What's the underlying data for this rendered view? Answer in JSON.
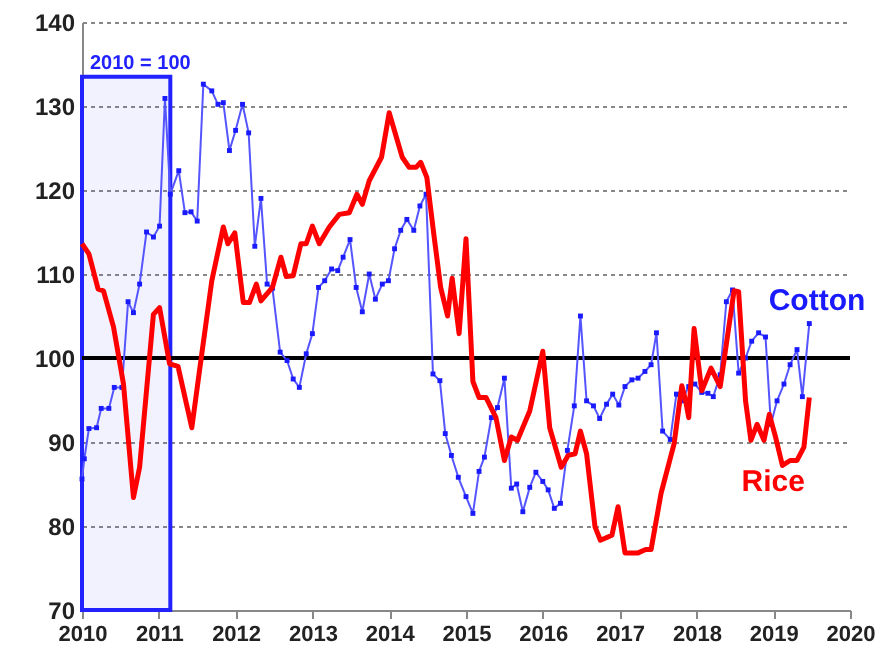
{
  "chart_data": {
    "type": "line",
    "xlim": [
      2010,
      2020
    ],
    "xticks": [
      2010,
      2011,
      2012,
      2013,
      2014,
      2015,
      2016,
      2017,
      2018,
      2019,
      2020
    ],
    "ylim": [
      70,
      140
    ],
    "yticks": [
      70,
      80,
      90,
      100,
      110,
      120,
      130,
      140
    ],
    "grid": "y",
    "ref_lines": [
      {
        "axis": "y",
        "value": 100,
        "color": "#000000"
      }
    ],
    "bands": [
      {
        "axis": "x",
        "from": 2010,
        "to": 2011.15,
        "label": "2010 = 100",
        "color": "#2222ff"
      }
    ],
    "series": [
      {
        "name": "Cotton",
        "color": "#5555ff",
        "marker": "square",
        "x": [
          2010.0,
          2010.03,
          2010.09,
          2010.19,
          2010.25,
          2010.35,
          2010.42,
          2010.52,
          2010.6,
          2010.67,
          2010.75,
          2010.84,
          2010.93,
          2011.01,
          2011.08,
          2011.15,
          2011.26,
          2011.34,
          2011.42,
          2011.5,
          2011.58,
          2011.69,
          2011.77,
          2011.84,
          2011.92,
          2012.0,
          2012.09,
          2012.17,
          2012.25,
          2012.33,
          2012.41,
          2012.48,
          2012.58,
          2012.67,
          2012.75,
          2012.83,
          2012.92,
          2013.0,
          2013.08,
          2013.16,
          2013.25,
          2013.33,
          2013.4,
          2013.49,
          2013.57,
          2013.65,
          2013.74,
          2013.82,
          2013.91,
          2013.99,
          2014.07,
          2014.15,
          2014.23,
          2014.32,
          2014.4,
          2014.48,
          2014.57,
          2014.66,
          2014.73,
          2014.81,
          2014.9,
          2015.0,
          2015.09,
          2015.17,
          2015.24,
          2015.33,
          2015.41,
          2015.5,
          2015.59,
          2015.66,
          2015.74,
          2015.83,
          2015.91,
          2016.0,
          2016.07,
          2016.15,
          2016.23,
          2016.32,
          2016.41,
          2016.49,
          2016.57,
          2016.66,
          2016.74,
          2016.83,
          2016.91,
          2016.99,
          2017.07,
          2017.16,
          2017.24,
          2017.33,
          2017.41,
          2017.48,
          2017.56,
          2017.66,
          2017.74,
          2017.81,
          2017.9,
          2017.98,
          2018.07,
          2018.15,
          2018.22,
          2018.31,
          2018.39,
          2018.47,
          2018.55,
          2018.64,
          2018.72,
          2018.81,
          2018.9,
          2018.97,
          2019.05,
          2019.14,
          2019.22,
          2019.31,
          2019.38,
          2019.47
        ],
        "values": [
          85.6,
          88,
          91.6,
          91.7,
          94,
          94,
          96.5,
          96.5,
          106.7,
          105.4,
          108.8,
          115,
          114.4,
          115.7,
          130.9,
          119.5,
          122.3,
          117.3,
          117.4,
          116.3,
          132.6,
          131.8,
          130.2,
          130.4,
          124.7,
          127.1,
          130.2,
          126.8,
          113.3,
          119,
          108.8,
          108.3,
          100.7,
          99.7,
          97.5,
          96.5,
          100.5,
          102.9,
          108.4,
          109.2,
          110.6,
          110.4,
          112,
          114.1,
          108.4,
          105.5,
          110,
          107,
          108.8,
          109.2,
          113,
          115.2,
          116.5,
          115.2,
          118.1,
          119.5,
          98.1,
          97.3,
          91,
          88.4,
          85.8,
          83.5,
          81.5,
          86.5,
          88.2,
          92.9,
          94.1,
          97.6,
          84.5,
          85,
          81.7,
          84.6,
          86.4,
          85.3,
          84.3,
          82.1,
          82.7,
          89,
          94.3,
          105,
          94.9,
          94.3,
          92.8,
          94.5,
          95.7,
          94.4,
          96.6,
          97.4,
          97.6,
          98.4,
          99.2,
          103,
          91.3,
          90.3,
          95.7,
          94.9,
          96.6,
          96.9,
          95.9,
          95.8,
          95.4,
          98,
          106.7,
          108.1,
          98.2,
          100,
          102,
          103,
          102.5,
          92.1,
          94.9,
          96.9,
          99.2,
          101,
          95.4,
          104.1
        ]
      },
      {
        "name": "Rice",
        "color": "#ff0000",
        "x": [
          2010.0,
          2010.09,
          2010.21,
          2010.28,
          2010.41,
          2010.54,
          2010.67,
          2010.75,
          2010.93,
          2011.01,
          2011.14,
          2011.25,
          2011.43,
          2011.53,
          2011.69,
          2011.84,
          2011.9,
          2011.99,
          2012.1,
          2012.18,
          2012.27,
          2012.33,
          2012.48,
          2012.59,
          2012.66,
          2012.75,
          2012.85,
          2012.92,
          2013.0,
          2013.09,
          2013.22,
          2013.35,
          2013.48,
          2013.58,
          2013.65,
          2013.74,
          2013.9,
          2014.0,
          2014.17,
          2014.26,
          2014.35,
          2014.41,
          2014.49,
          2014.58,
          2014.67,
          2014.76,
          2014.82,
          2014.91,
          2015.0,
          2015.09,
          2015.17,
          2015.26,
          2015.39,
          2015.5,
          2015.59,
          2015.67,
          2015.83,
          2016.0,
          2016.09,
          2016.24,
          2016.33,
          2016.42,
          2016.49,
          2016.57,
          2016.68,
          2016.75,
          2016.9,
          2016.98,
          2017.07,
          2017.24,
          2017.34,
          2017.41,
          2017.54,
          2017.71,
          2017.81,
          2017.86,
          2017.9,
          2017.97,
          2018.07,
          2018.19,
          2018.31,
          2018.49,
          2018.55,
          2018.64,
          2018.71,
          2018.79,
          2018.88,
          2018.95,
          2019.03,
          2019.12,
          2019.22,
          2019.31,
          2019.4,
          2019.47
        ],
        "values": [
          113.6,
          112.4,
          108.2,
          108,
          103.7,
          96.9,
          83.4,
          87,
          105.2,
          106,
          99.3,
          99,
          91.7,
          98.5,
          109.2,
          115.6,
          113.6,
          114.9,
          106.6,
          106.6,
          108.8,
          106.8,
          108.4,
          112,
          109.7,
          109.8,
          113.6,
          113.6,
          115.7,
          113.6,
          115.6,
          117.1,
          117.3,
          119.5,
          118.3,
          121.1,
          123.9,
          129.2,
          123.9,
          122.7,
          122.7,
          123.3,
          121.5,
          114.8,
          108.4,
          105,
          109.5,
          102.9,
          114.2,
          97.2,
          95.3,
          95.3,
          92.9,
          87.8,
          90.6,
          90.2,
          93.7,
          100.8,
          91.7,
          87,
          88.4,
          88.6,
          91.3,
          88.6,
          79.9,
          78.3,
          78.9,
          82.3,
          76.8,
          76.8,
          77.2,
          77.2,
          83.9,
          89.8,
          96.7,
          94.9,
          92.9,
          103.5,
          96.1,
          98.8,
          96.6,
          108,
          107.9,
          94.9,
          90.2,
          92.1,
          90.2,
          93.3,
          90.6,
          87.2,
          87.8,
          87.8,
          89.4,
          95.3
        ]
      }
    ]
  }
}
